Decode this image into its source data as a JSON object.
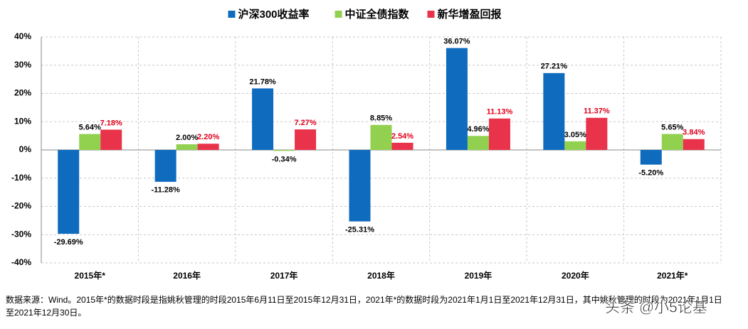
{
  "chart_data": {
    "type": "bar",
    "categories": [
      "2015年*",
      "2016年",
      "2017年",
      "2018年",
      "2019年",
      "2020年",
      "2021年*"
    ],
    "series": [
      {
        "name": "沪深300收益率",
        "color": "#0e6bbd",
        "label_color": "#000000",
        "values": [
          -29.69,
          -11.28,
          21.78,
          -25.31,
          36.07,
          27.21,
          -5.2
        ],
        "value_labels": [
          "-29.69%",
          "-11.28%",
          "21.78%",
          "-25.31%",
          "36.07%",
          "27.21%",
          "-5.20%"
        ]
      },
      {
        "name": "中证全债指数",
        "color": "#92d050",
        "label_color": "#000000",
        "values": [
          5.64,
          2.0,
          -0.34,
          8.85,
          4.96,
          3.05,
          5.65
        ],
        "value_labels": [
          "5.64%",
          "2.00%",
          "-0.34%",
          "8.85%",
          "4.96%",
          "3.05%",
          "5.65%"
        ]
      },
      {
        "name": "新华增盈回报",
        "color": "#e8334a",
        "label_color": "#e0001b",
        "values": [
          7.18,
          2.2,
          7.27,
          2.54,
          11.13,
          11.37,
          3.84
        ],
        "value_labels": [
          "7.18%",
          "2.20%",
          "7.27%",
          "2.54%",
          "11.13%",
          "11.37%",
          "3.84%"
        ]
      }
    ],
    "ylim": [
      -40,
      40
    ],
    "yticks": [
      {
        "value": -40,
        "label": "-40%"
      },
      {
        "value": -30,
        "label": "-30%"
      },
      {
        "value": -20,
        "label": "-20%"
      },
      {
        "value": -10,
        "label": "-10%"
      },
      {
        "value": 0,
        "label": "0%"
      },
      {
        "value": 10,
        "label": "10%"
      },
      {
        "value": 20,
        "label": "20%"
      },
      {
        "value": 30,
        "label": "30%"
      },
      {
        "value": 40,
        "label": "40%"
      }
    ],
    "grid": true,
    "legend": "top",
    "footnote": [
      "数据来源：Wind。2015年*的数据时段是指姚秋管理的时段2015年6月11日至2015年12月31日，2021年*的数据时段为2021年1月1日至2021年12月31日，其中姚秋管理的时段为2021年1月1日",
      "至2021年12月30日。"
    ],
    "watermark": "头条 @小5论基"
  }
}
